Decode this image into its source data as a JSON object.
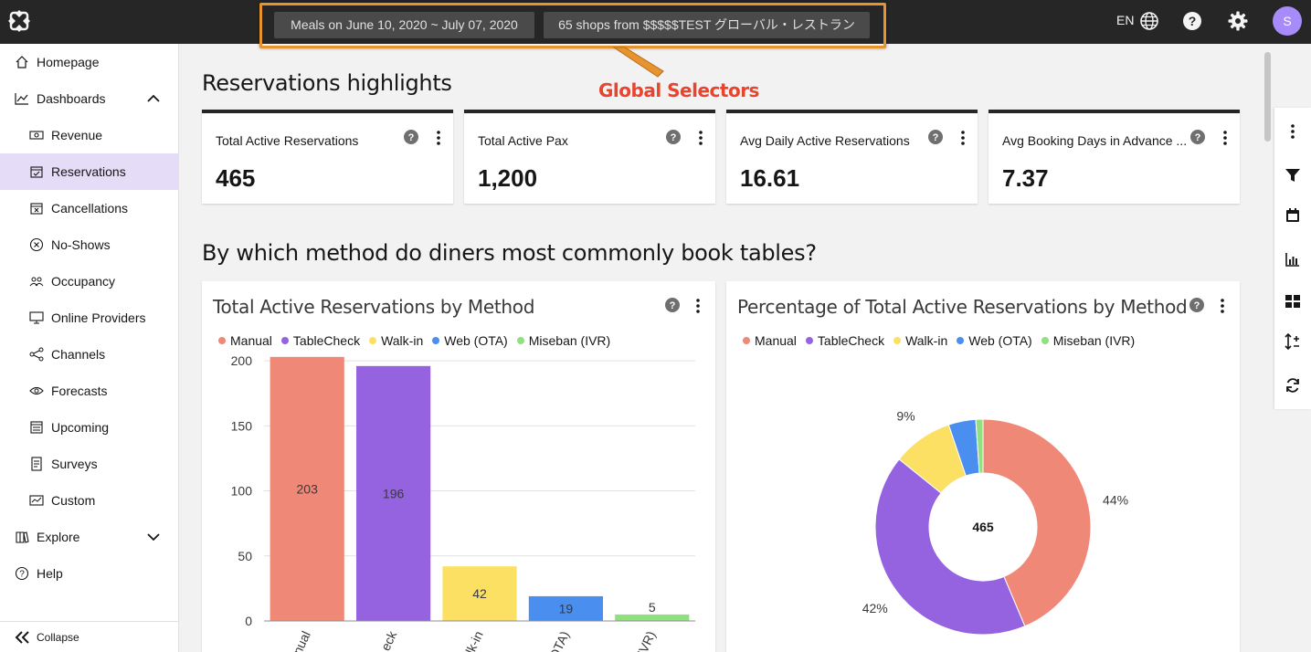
{
  "topbar": {
    "date_selector": "Meals on June 10, 2020 ~ July 07, 2020",
    "shop_selector": "65 shops from $$$$$TEST グローバル・レストラン",
    "language": "EN",
    "avatar_initial": "S"
  },
  "annotation": {
    "label": "Global Selectors",
    "color": "#e8442e"
  },
  "sidebar": {
    "items": [
      {
        "label": "Homepage",
        "icon": "home-icon",
        "level": "top"
      },
      {
        "label": "Dashboards",
        "icon": "chart-line-icon",
        "level": "top",
        "expanded": true
      },
      {
        "label": "Revenue",
        "icon": "money-icon",
        "level": "sub"
      },
      {
        "label": "Reservations",
        "icon": "calendar-check-icon",
        "level": "sub",
        "active": true
      },
      {
        "label": "Cancellations",
        "icon": "calendar-x-icon",
        "level": "sub"
      },
      {
        "label": "No-Shows",
        "icon": "circle-x-icon",
        "level": "sub"
      },
      {
        "label": "Occupancy",
        "icon": "people-icon",
        "level": "sub"
      },
      {
        "label": "Online Providers",
        "icon": "monitor-icon",
        "level": "sub"
      },
      {
        "label": "Channels",
        "icon": "network-icon",
        "level": "sub"
      },
      {
        "label": "Forecasts",
        "icon": "eye-icon",
        "level": "sub"
      },
      {
        "label": "Upcoming",
        "icon": "calendar-list-icon",
        "level": "sub"
      },
      {
        "label": "Surveys",
        "icon": "document-icon",
        "level": "sub"
      },
      {
        "label": "Custom",
        "icon": "custom-dashboard-icon",
        "level": "sub"
      },
      {
        "label": "Explore",
        "icon": "book-icon",
        "level": "top",
        "collapsed": true
      },
      {
        "label": "Help",
        "icon": "help-circle-icon",
        "level": "top"
      }
    ],
    "collapse_label": "Collapse",
    "active_color": "#e5dcf7"
  },
  "main": {
    "highlights_title": "Reservations highlights",
    "kpis": [
      {
        "label": "Total Active Reservations",
        "value": "465"
      },
      {
        "label": "Total Active Pax",
        "value": "1,200"
      },
      {
        "label": "Avg Daily Active Reservations",
        "value": "16.61"
      },
      {
        "label": "Avg Booking Days in Advance ...",
        "value": "7.37"
      }
    ],
    "question_title": "By which method do diners most commonly book tables?",
    "bar_panel_title": "Total Active Reservations by Method",
    "pie_panel_title": "Percentage of Total Active Reservations by Method",
    "legend": [
      {
        "name": "Manual",
        "color": "#f08878"
      },
      {
        "name": "TableCheck",
        "color": "#9563e0"
      },
      {
        "name": "Walk-in",
        "color": "#fbe064"
      },
      {
        "name": "Web (OTA)",
        "color": "#4a8ef0"
      },
      {
        "name": "Miseban (IVR)",
        "color": "#90e080"
      }
    ]
  },
  "chart_data": [
    {
      "type": "bar",
      "title": "Total Active Reservations by Method",
      "categories": [
        "Manual",
        "TableCheck",
        "Walk-in",
        "Web (OTA)",
        "Miseban (IVR)"
      ],
      "visible_tick_labels": [
        "nual",
        "eck",
        "lk-in",
        "OTA)",
        "IVR)"
      ],
      "values": [
        203,
        196,
        42,
        19,
        5
      ],
      "colors": [
        "#f08878",
        "#9563e0",
        "#fbe064",
        "#4a8ef0",
        "#90e080"
      ],
      "yticks": [
        0,
        50,
        100,
        150,
        200
      ],
      "ylim": [
        0,
        205
      ],
      "data_labels": true,
      "grid": true
    },
    {
      "type": "pie",
      "title": "Percentage of Total Active Reservations by Method",
      "donut": true,
      "center_label": "465",
      "categories": [
        "Manual",
        "TableCheck",
        "Walk-in",
        "Web (OTA)",
        "Miseban (IVR)"
      ],
      "values": [
        203,
        196,
        42,
        19,
        5
      ],
      "colors": [
        "#f08878",
        "#9563e0",
        "#fbe064",
        "#4a8ef0",
        "#90e080"
      ],
      "slice_labels": [
        "44%",
        "42%",
        "9%",
        "",
        ""
      ]
    }
  ]
}
